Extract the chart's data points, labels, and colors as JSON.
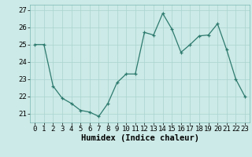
{
  "x": [
    0,
    1,
    2,
    3,
    4,
    5,
    6,
    7,
    8,
    9,
    10,
    11,
    12,
    13,
    14,
    15,
    16,
    17,
    18,
    19,
    20,
    21,
    22,
    23
  ],
  "y": [
    25.0,
    25.0,
    22.6,
    21.9,
    21.6,
    21.2,
    21.1,
    20.85,
    21.6,
    22.8,
    23.3,
    23.3,
    25.7,
    25.55,
    26.8,
    25.9,
    24.55,
    25.0,
    25.5,
    25.55,
    26.2,
    24.7,
    23.0,
    22.0
  ],
  "line_color": "#2d7a6e",
  "marker": "+",
  "bg_color": "#cceae7",
  "grid_major_color": "#aad4d0",
  "grid_minor_color": "#bfe0dd",
  "xlabel": "Humidex (Indice chaleur)",
  "ylim": [
    20.5,
    27.3
  ],
  "xlim": [
    -0.5,
    23.5
  ],
  "yticks": [
    21,
    22,
    23,
    24,
    25,
    26,
    27
  ],
  "xticks": [
    0,
    1,
    2,
    3,
    4,
    5,
    6,
    7,
    8,
    9,
    10,
    11,
    12,
    13,
    14,
    15,
    16,
    17,
    18,
    19,
    20,
    21,
    22,
    23
  ],
  "xlabel_fontsize": 7.5,
  "tick_fontsize": 6.5,
  "linewidth": 0.9,
  "markersize": 3.5,
  "markeredgewidth": 0.9
}
